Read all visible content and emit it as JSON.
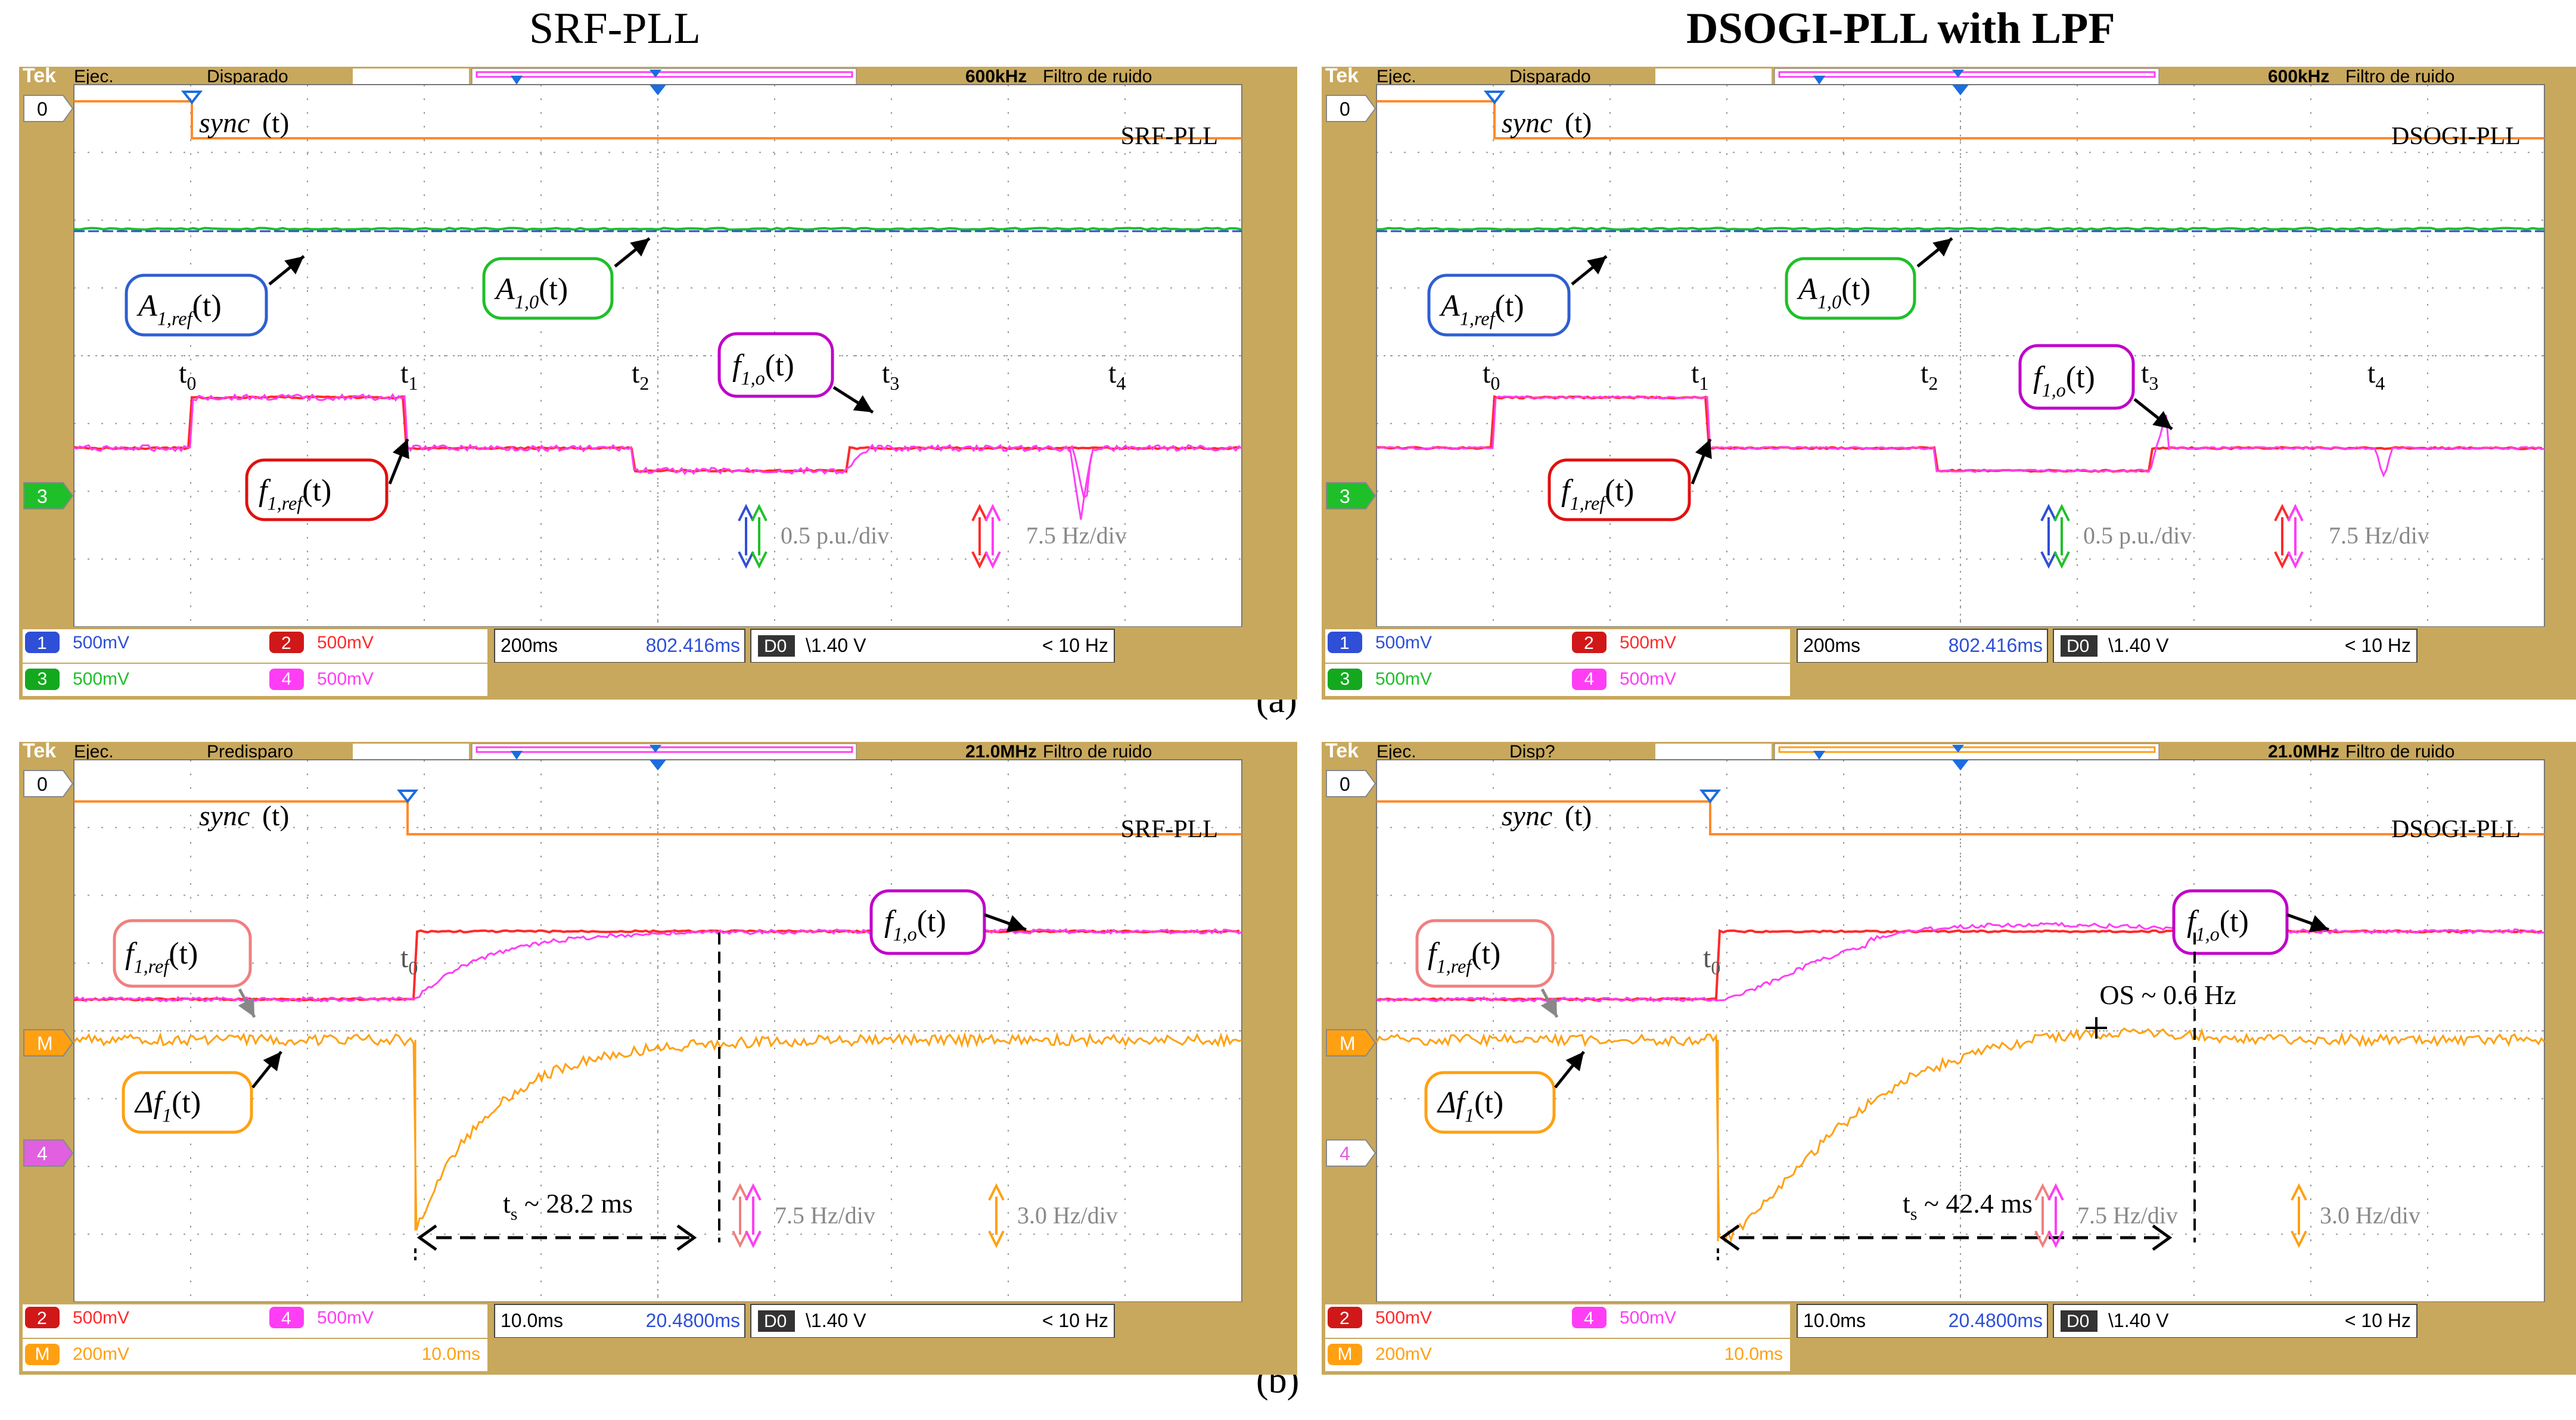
{
  "titles": {
    "left": "SRF-PLL",
    "right": "DSOGI-PLL with LPF"
  },
  "sublabels": {
    "a": "(a)",
    "b": "(b)"
  },
  "colors": {
    "bezel": "#c8a85c",
    "screen": "#ffffff",
    "grid": "#9a9a9a",
    "ch1": "#2e4fd6",
    "ch2": "#ff2a2a",
    "ch3": "#1fbf2a",
    "ch4": "#ff3df5",
    "math": "#ffa013",
    "sync": "#ff8a2a",
    "cursor": "#1b6de0",
    "blue_box": "#2e5fd0",
    "green_box": "#1fbf2a",
    "red_box": "#e01010",
    "magenta_box": "#c000c8",
    "orange_box": "#ffa013",
    "pink_box": "#f08080"
  },
  "panels": [
    {
      "id": "a-srf",
      "hud": {
        "brand": "Tek",
        "mode": "Ejec.",
        "trig": "Disparado",
        "bw": "600kHz",
        "filter": "Filtro de ruido"
      },
      "method_tag": "SRF-PLL",
      "sync_label": "sync(t)",
      "marker_zero": "0",
      "marker_ch": "3",
      "times": [
        "t0",
        "t1",
        "t2",
        "t3",
        "t4"
      ],
      "labels": {
        "A_ref": "A1,ref(t)",
        "A_o": "A1,0(t)",
        "f_o": "f1,o(t)",
        "f_ref": "f1,ref(t)"
      },
      "scales": [
        "0.5 p.u./div",
        "7.5 Hz/div"
      ],
      "status": {
        "ch1": "500mV",
        "ch2": "500mV",
        "ch3": "500mV",
        "ch4": "500mV",
        "ch1_n": "1",
        "ch2_n": "2",
        "ch3_n": "3",
        "ch4_n": "4",
        "time_div": "200ms",
        "position": "802.416ms",
        "trig_src": "D0",
        "trig_level": "\\1.40 V",
        "freq": "< 10 Hz"
      }
    },
    {
      "id": "a-dsogi",
      "hud": {
        "brand": "Tek",
        "mode": "Ejec.",
        "trig": "Disparado",
        "bw": "600kHz",
        "filter": "Filtro de ruido"
      },
      "method_tag": "DSOGI-PLL",
      "sync_label": "sync(t)",
      "marker_zero": "0",
      "marker_ch": "3",
      "times": [
        "t0",
        "t1",
        "t2",
        "t3",
        "t4"
      ],
      "labels": {
        "A_ref": "A1,ref(t)",
        "A_o": "A1,0(t)",
        "f_o": "f1,o(t)",
        "f_ref": "f1,ref(t)"
      },
      "scales": [
        "0.5 p.u./div",
        "7.5 Hz/div"
      ],
      "status": {
        "ch1": "500mV",
        "ch2": "500mV",
        "ch3": "500mV",
        "ch4": "500mV",
        "ch1_n": "1",
        "ch2_n": "2",
        "ch3_n": "3",
        "ch4_n": "4",
        "time_div": "200ms",
        "position": "802.416ms",
        "trig_src": "D0",
        "trig_level": "\\1.40 V",
        "freq": "< 10 Hz"
      }
    },
    {
      "id": "b-srf",
      "hud": {
        "brand": "Tek",
        "mode": "Ejec.",
        "trig": "Predisparo",
        "bw": "21.0MHz",
        "filter": "Filtro de ruido"
      },
      "method_tag": "SRF-PLL",
      "sync_label": "sync(t)",
      "marker_zero": "0",
      "marker_m": "M",
      "marker_ch": "4",
      "t0": "t0",
      "labels": {
        "f_ref": "f1,ref(t)",
        "f_o": "f1,o(t)",
        "df": "Δf1(t)"
      },
      "settling": "ts ~ 28.2  ms",
      "overshoot": "",
      "scales": [
        "7.5 Hz/div",
        "3.0 Hz/div"
      ],
      "status": {
        "ch2": "500mV",
        "ch4": "500mV",
        "math": "200mV",
        "math_time": "10.0ms",
        "ch2_n": "2",
        "ch4_n": "4",
        "math_n": "M",
        "time_div": "10.0ms",
        "position": "20.4800ms",
        "trig_src": "D0",
        "trig_level": "\\1.40 V",
        "freq": "< 10 Hz"
      }
    },
    {
      "id": "b-dsogi",
      "hud": {
        "brand": "Tek",
        "mode": "Ejec.",
        "trig": "Disp?",
        "bw": "21.0MHz",
        "filter": "Filtro de ruido"
      },
      "method_tag": "DSOGI-PLL",
      "sync_label": "sync(t)",
      "marker_zero": "0",
      "marker_m": "M",
      "marker_ch": "4",
      "t0": "t0",
      "labels": {
        "f_ref": "f1,ref(t)",
        "f_o": "f1,o(t)",
        "df": "Δf1(t)"
      },
      "settling": "ts ~ 42.4  ms",
      "overshoot": "OS ~ 0.6 Hz",
      "scales": [
        "7.5 Hz/div",
        "3.0 Hz/div"
      ],
      "status": {
        "ch2": "500mV",
        "ch4": "500mV",
        "math": "200mV",
        "math_time": "10.0ms",
        "ch2_n": "2",
        "ch4_n": "4",
        "math_n": "M",
        "time_div": "10.0ms",
        "position": "20.4800ms",
        "trig_src": "D0",
        "trig_level": "\\1.40 V",
        "freq": "< 10 Hz"
      }
    }
  ]
}
